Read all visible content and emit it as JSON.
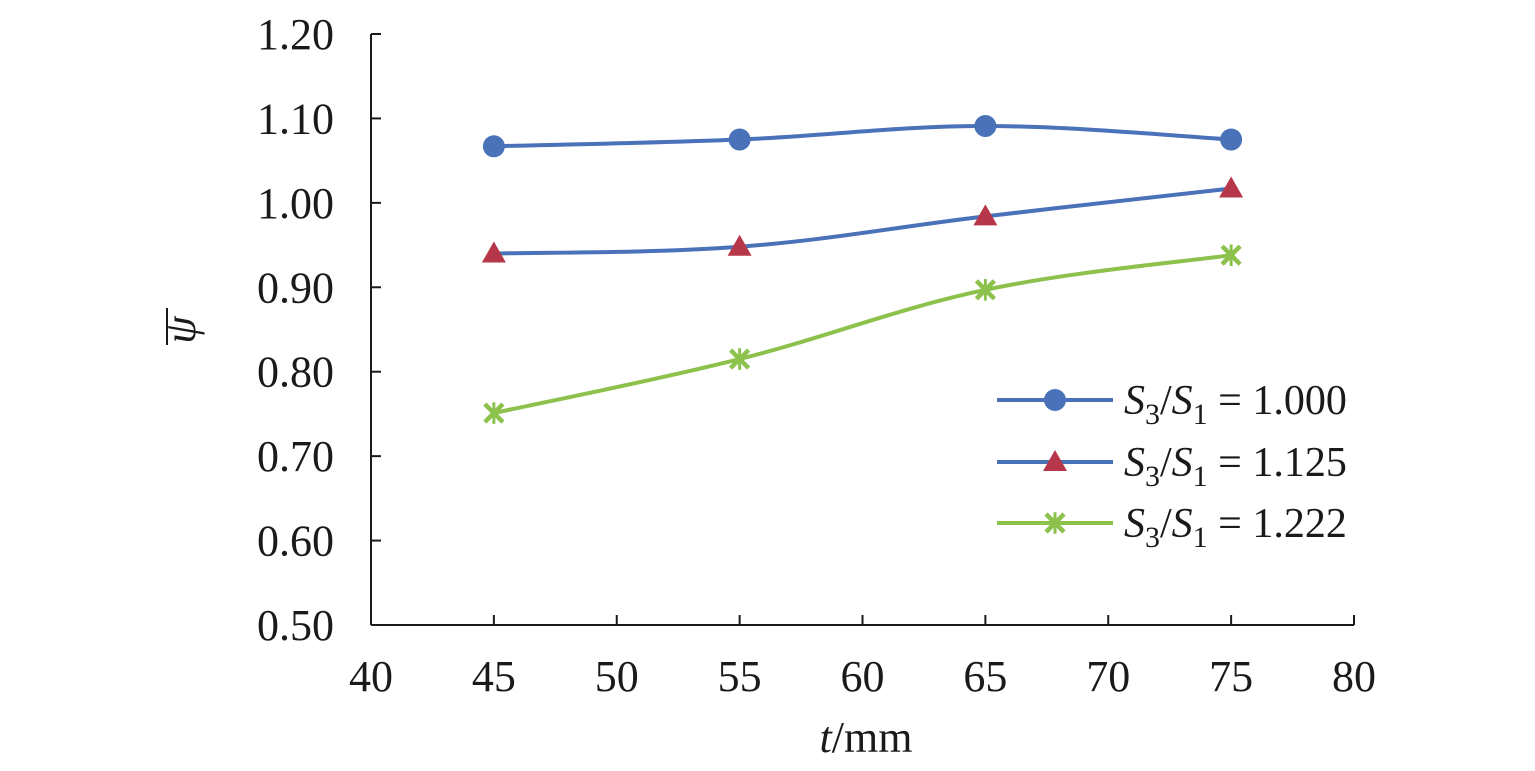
{
  "chart_data": {
    "type": "line",
    "title": "",
    "x": [
      45,
      55,
      65,
      75
    ],
    "xlim": [
      40,
      80
    ],
    "ylim": [
      0.5,
      1.2
    ],
    "xticks": [
      40,
      45,
      50,
      55,
      60,
      65,
      70,
      75,
      80
    ],
    "yticks": [
      "0.50",
      "0.60",
      "0.70",
      "0.80",
      "0.90",
      "1.00",
      "1.10",
      "1.20"
    ],
    "xlabel": {
      "var": "t",
      "unit": "/mm"
    },
    "ylabel": "ψ",
    "grid": false,
    "legend_position": "right",
    "series": [
      {
        "name": "S3/S1 = 1.000",
        "label_a": "S",
        "sub_a": "3",
        "slash": "/",
        "label_b": "S",
        "sub_b": "1",
        "value_text": " = 1.000",
        "values": [
          1.067,
          1.075,
          1.091,
          1.075
        ],
        "color": "#4a72b8",
        "marker_color": "#4a72b8",
        "marker": "circle"
      },
      {
        "name": "S3/S1 = 1.125",
        "label_a": "S",
        "sub_a": "3",
        "slash": "/",
        "label_b": "S",
        "sub_b": "1",
        "value_text": " = 1.125",
        "values": [
          0.94,
          0.948,
          0.984,
          1.017
        ],
        "color": "#4a72b8",
        "marker_color": "#b7374a",
        "marker": "triangle"
      },
      {
        "name": "S3/S1 = 1.222",
        "label_a": "S",
        "sub_a": "3",
        "slash": "/",
        "label_b": "S",
        "sub_b": "1",
        "value_text": " = 1.222",
        "values": [
          0.751,
          0.815,
          0.897,
          0.938
        ],
        "color": "#8cc14c",
        "marker_color": "#8cc14c",
        "marker": "star"
      }
    ]
  }
}
